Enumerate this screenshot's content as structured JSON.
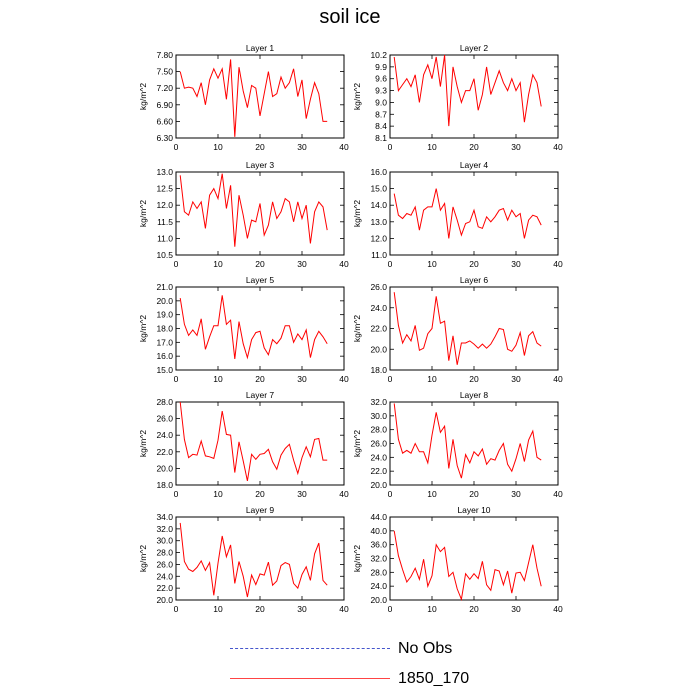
{
  "figure": {
    "title": "soil ice",
    "ylabel": "kg/m^2"
  },
  "legend": {
    "items": [
      {
        "label": "No Obs",
        "style": "dashed",
        "color": "#0000cc"
      },
      {
        "label": "1850_170",
        "style": "solid",
        "color": "#ff0000"
      }
    ]
  },
  "chart_data": [
    {
      "type": "line",
      "title": "Layer 1",
      "ylabel": "kg/m^2",
      "xlim": [
        0,
        40
      ],
      "xticks": [
        0,
        10,
        20,
        30,
        40
      ],
      "ylim": [
        6.3,
        7.8
      ],
      "yticks": [
        6.3,
        6.6,
        6.9,
        7.2,
        7.5,
        7.8
      ],
      "ytick_labels": [
        "6.30",
        "6.60",
        "6.90",
        "7.20",
        "7.50",
        "7.80"
      ],
      "series": [
        {
          "color": "#ff0000",
          "x": [
            1,
            2,
            3,
            4,
            5,
            6,
            7,
            8,
            9,
            10,
            11,
            12,
            13,
            14,
            15,
            16,
            17,
            18,
            19,
            20,
            21,
            22,
            23,
            24,
            25,
            26,
            27,
            28,
            29,
            30,
            31,
            32,
            33,
            34,
            35,
            36
          ],
          "values": [
            7.5,
            7.2,
            7.22,
            7.2,
            7.05,
            7.3,
            6.9,
            7.35,
            7.55,
            7.38,
            7.55,
            7.0,
            7.72,
            6.32,
            7.58,
            7.15,
            6.85,
            7.25,
            7.2,
            6.7,
            7.1,
            7.5,
            7.05,
            7.1,
            7.4,
            7.2,
            7.3,
            7.55,
            7.05,
            7.35,
            6.65,
            7.0,
            7.3,
            7.1,
            6.6,
            6.6
          ]
        }
      ]
    },
    {
      "type": "line",
      "title": "Layer 2",
      "ylabel": "kg/m^2",
      "xlim": [
        0,
        40
      ],
      "xticks": [
        0,
        10,
        20,
        30,
        40
      ],
      "ylim": [
        8.1,
        10.2
      ],
      "yticks": [
        8.1,
        8.4,
        8.7,
        9.0,
        9.3,
        9.6,
        9.9,
        10.2
      ],
      "ytick_labels": [
        "8.1",
        "8.4",
        "8.7",
        "9.0",
        "9.3",
        "9.6",
        "9.9",
        "10.2"
      ],
      "series": [
        {
          "color": "#ff0000",
          "x": [
            1,
            2,
            3,
            4,
            5,
            6,
            7,
            8,
            9,
            10,
            11,
            12,
            13,
            14,
            15,
            16,
            17,
            18,
            19,
            20,
            21,
            22,
            23,
            24,
            25,
            26,
            27,
            28,
            29,
            30,
            31,
            32,
            33,
            34,
            35,
            36
          ],
          "values": [
            10.15,
            9.3,
            9.45,
            9.6,
            9.4,
            9.7,
            9.0,
            9.7,
            9.95,
            9.6,
            10.15,
            9.4,
            10.2,
            8.4,
            9.9,
            9.4,
            9.0,
            9.3,
            9.3,
            9.6,
            8.8,
            9.2,
            9.9,
            9.2,
            9.5,
            9.8,
            9.5,
            9.3,
            9.6,
            9.3,
            9.5,
            8.5,
            9.2,
            9.7,
            9.5,
            8.9
          ]
        }
      ]
    },
    {
      "type": "line",
      "title": "Layer 3",
      "ylabel": "kg/m^2",
      "xlim": [
        0,
        40
      ],
      "xticks": [
        0,
        10,
        20,
        30,
        40
      ],
      "ylim": [
        10.5,
        13.0
      ],
      "yticks": [
        10.5,
        11.0,
        11.5,
        12.0,
        12.5,
        13.0
      ],
      "ytick_labels": [
        "10.5",
        "11.0",
        "11.5",
        "12.0",
        "12.5",
        "13.0"
      ],
      "series": [
        {
          "color": "#ff0000",
          "x": [
            1,
            2,
            3,
            4,
            5,
            6,
            7,
            8,
            9,
            10,
            11,
            12,
            13,
            14,
            15,
            16,
            17,
            18,
            19,
            20,
            21,
            22,
            23,
            24,
            25,
            26,
            27,
            28,
            29,
            30,
            31,
            32,
            33,
            34,
            35,
            36
          ],
          "values": [
            12.9,
            11.8,
            11.7,
            12.1,
            11.9,
            12.1,
            11.3,
            12.3,
            12.5,
            12.2,
            12.95,
            11.9,
            12.6,
            10.75,
            12.3,
            11.7,
            11.0,
            11.55,
            11.5,
            12.05,
            11.1,
            11.4,
            12.1,
            11.6,
            11.8,
            12.2,
            12.1,
            11.5,
            12.1,
            11.6,
            12.0,
            10.85,
            11.8,
            12.1,
            11.95,
            11.25
          ]
        }
      ]
    },
    {
      "type": "line",
      "title": "Layer 4",
      "ylabel": "kg/m^2",
      "xlim": [
        0,
        40
      ],
      "xticks": [
        0,
        10,
        20,
        30,
        40
      ],
      "ylim": [
        11.0,
        16.0
      ],
      "yticks": [
        11.0,
        12.0,
        13.0,
        14.0,
        15.0,
        16.0
      ],
      "ytick_labels": [
        "11.0",
        "12.0",
        "13.0",
        "14.0",
        "15.0",
        "16.0"
      ],
      "series": [
        {
          "color": "#ff0000",
          "x": [
            1,
            2,
            3,
            4,
            5,
            6,
            7,
            8,
            9,
            10,
            11,
            12,
            13,
            14,
            15,
            16,
            17,
            18,
            19,
            20,
            21,
            22,
            23,
            24,
            25,
            26,
            27,
            28,
            29,
            30,
            31,
            32,
            33,
            34,
            35,
            36
          ],
          "values": [
            14.7,
            13.4,
            13.2,
            13.5,
            13.4,
            13.9,
            12.5,
            13.7,
            13.9,
            13.9,
            15.0,
            13.7,
            14.1,
            12.0,
            13.9,
            13.1,
            12.2,
            12.9,
            13.0,
            13.7,
            12.7,
            12.6,
            13.3,
            13.0,
            13.3,
            13.7,
            13.8,
            13.1,
            13.7,
            13.3,
            13.5,
            12.0,
            13.1,
            13.4,
            13.3,
            12.8
          ]
        }
      ]
    },
    {
      "type": "line",
      "title": "Layer 5",
      "ylabel": "kg/m^2",
      "xlim": [
        0,
        40
      ],
      "xticks": [
        0,
        10,
        20,
        30,
        40
      ],
      "ylim": [
        15.0,
        21.0
      ],
      "yticks": [
        15.0,
        16.0,
        17.0,
        18.0,
        19.0,
        20.0,
        21.0
      ],
      "ytick_labels": [
        "15.0",
        "16.0",
        "17.0",
        "18.0",
        "19.0",
        "20.0",
        "21.0"
      ],
      "series": [
        {
          "color": "#ff0000",
          "x": [
            1,
            2,
            3,
            4,
            5,
            6,
            7,
            8,
            9,
            10,
            11,
            12,
            13,
            14,
            15,
            16,
            17,
            18,
            19,
            20,
            21,
            22,
            23,
            24,
            25,
            26,
            27,
            28,
            29,
            30,
            31,
            32,
            33,
            34,
            35,
            36
          ],
          "values": [
            20.2,
            18.3,
            17.5,
            17.9,
            17.5,
            18.7,
            16.5,
            17.4,
            18.2,
            18.2,
            20.4,
            18.3,
            18.6,
            15.8,
            18.5,
            16.9,
            15.9,
            17.2,
            17.7,
            17.8,
            16.6,
            16.1,
            17.2,
            16.9,
            17.3,
            18.2,
            18.2,
            17.0,
            17.6,
            17.2,
            17.9,
            15.9,
            17.2,
            17.8,
            17.4,
            16.9
          ]
        }
      ]
    },
    {
      "type": "line",
      "title": "Layer 6",
      "ylabel": "kg/m^2",
      "xlim": [
        0,
        40
      ],
      "xticks": [
        0,
        10,
        20,
        30,
        40
      ],
      "ylim": [
        18.0,
        26.0
      ],
      "yticks": [
        18.0,
        20.0,
        22.0,
        24.0,
        26.0
      ],
      "ytick_labels": [
        "18.0",
        "20.0",
        "22.0",
        "24.0",
        "26.0"
      ],
      "series": [
        {
          "color": "#ff0000",
          "x": [
            1,
            2,
            3,
            4,
            5,
            6,
            7,
            8,
            9,
            10,
            11,
            12,
            13,
            14,
            15,
            16,
            17,
            18,
            19,
            20,
            21,
            22,
            23,
            24,
            25,
            26,
            27,
            28,
            29,
            30,
            31,
            32,
            33,
            34,
            35,
            36
          ],
          "values": [
            25.5,
            22.3,
            20.6,
            21.4,
            20.8,
            22.3,
            19.9,
            20.1,
            21.5,
            22.0,
            25.1,
            22.5,
            22.7,
            18.9,
            21.3,
            18.5,
            20.6,
            20.6,
            20.8,
            20.5,
            20.1,
            20.5,
            20.1,
            20.5,
            21.2,
            22.0,
            21.9,
            20.0,
            19.8,
            20.4,
            21.6,
            19.4,
            21.3,
            21.7,
            20.6,
            20.3
          ]
        }
      ]
    },
    {
      "type": "line",
      "title": "Layer 7",
      "ylabel": "kg/m^2",
      "xlim": [
        0,
        40
      ],
      "xticks": [
        0,
        10,
        20,
        30,
        40
      ],
      "ylim": [
        18.0,
        28.0
      ],
      "yticks": [
        18.0,
        20.0,
        22.0,
        24.0,
        26.0,
        28.0
      ],
      "ytick_labels": [
        "18.0",
        "20.0",
        "22.0",
        "24.0",
        "26.0",
        "28.0"
      ],
      "series": [
        {
          "color": "#ff0000",
          "x": [
            1,
            2,
            3,
            4,
            5,
            6,
            7,
            8,
            9,
            10,
            11,
            12,
            13,
            14,
            15,
            16,
            17,
            18,
            19,
            20,
            21,
            22,
            23,
            24,
            25,
            26,
            27,
            28,
            29,
            30,
            31,
            32,
            33,
            34,
            35,
            36
          ],
          "values": [
            28.0,
            23.5,
            21.3,
            21.7,
            21.6,
            23.3,
            21.5,
            21.4,
            21.2,
            23.4,
            26.9,
            24.1,
            24.0,
            19.5,
            23.2,
            20.9,
            18.5,
            21.7,
            21.1,
            21.7,
            21.8,
            22.3,
            20.8,
            19.9,
            21.6,
            22.4,
            22.9,
            21.0,
            19.4,
            21.3,
            22.6,
            21.4,
            23.5,
            23.6,
            21.0,
            21.0
          ]
        }
      ]
    },
    {
      "type": "line",
      "title": "Layer 8",
      "ylabel": "kg/m^2",
      "xlim": [
        0,
        40
      ],
      "xticks": [
        0,
        10,
        20,
        30,
        40
      ],
      "ylim": [
        20.0,
        32.0
      ],
      "yticks": [
        20.0,
        22.0,
        24.0,
        26.0,
        28.0,
        30.0,
        32.0
      ],
      "ytick_labels": [
        "20.0",
        "22.0",
        "24.0",
        "26.0",
        "28.0",
        "30.0",
        "32.0"
      ],
      "series": [
        {
          "color": "#ff0000",
          "x": [
            1,
            2,
            3,
            4,
            5,
            6,
            7,
            8,
            9,
            10,
            11,
            12,
            13,
            14,
            15,
            16,
            17,
            18,
            19,
            20,
            21,
            22,
            23,
            24,
            25,
            26,
            27,
            28,
            29,
            30,
            31,
            32,
            33,
            34,
            35,
            36
          ],
          "values": [
            31.8,
            26.6,
            24.6,
            25.0,
            24.6,
            26.0,
            24.8,
            24.8,
            23.2,
            27.2,
            30.5,
            27.6,
            28.5,
            22.4,
            26.6,
            22.8,
            21.0,
            24.4,
            23.2,
            24.8,
            24.2,
            25.2,
            23.0,
            23.8,
            23.6,
            25.0,
            26.0,
            23.0,
            22.0,
            23.8,
            26.0,
            23.4,
            26.5,
            27.8,
            24.0,
            23.6
          ]
        }
      ]
    },
    {
      "type": "line",
      "title": "Layer 9",
      "ylabel": "kg/m^2",
      "xlim": [
        0,
        40
      ],
      "xticks": [
        0,
        10,
        20,
        30,
        40
      ],
      "ylim": [
        20.0,
        34.0
      ],
      "yticks": [
        20.0,
        22.0,
        24.0,
        26.0,
        28.0,
        30.0,
        32.0,
        34.0
      ],
      "ytick_labels": [
        "20.0",
        "22.0",
        "24.0",
        "26.0",
        "28.0",
        "30.0",
        "32.0",
        "34.0"
      ],
      "series": [
        {
          "color": "#ff0000",
          "x": [
            1,
            2,
            3,
            4,
            5,
            6,
            7,
            8,
            9,
            10,
            11,
            12,
            13,
            14,
            15,
            16,
            17,
            18,
            19,
            20,
            21,
            22,
            23,
            24,
            25,
            26,
            27,
            28,
            29,
            30,
            31,
            32,
            33,
            34,
            35,
            36
          ],
          "values": [
            33.0,
            26.5,
            25.2,
            24.8,
            25.5,
            26.6,
            25.0,
            26.3,
            20.8,
            26.2,
            30.8,
            27.3,
            29.3,
            22.8,
            26.5,
            24.0,
            20.5,
            24.2,
            22.6,
            24.4,
            24.2,
            26.4,
            22.5,
            23.2,
            25.8,
            26.3,
            26.0,
            22.8,
            22.0,
            24.3,
            25.6,
            23.3,
            27.8,
            29.6,
            23.3,
            22.5
          ]
        }
      ]
    },
    {
      "type": "line",
      "title": "Layer 10",
      "ylabel": "kg/m^2",
      "xlim": [
        0,
        40
      ],
      "xticks": [
        0,
        10,
        20,
        30,
        40
      ],
      "ylim": [
        20.0,
        44.0
      ],
      "yticks": [
        20.0,
        24.0,
        28.0,
        32.0,
        36.0,
        40.0,
        44.0
      ],
      "ytick_labels": [
        "20.0",
        "24.0",
        "28.0",
        "32.0",
        "36.0",
        "40.0",
        "44.0"
      ],
      "series": [
        {
          "color": "#ff0000",
          "x": [
            1,
            2,
            3,
            4,
            5,
            6,
            7,
            8,
            9,
            10,
            11,
            12,
            13,
            14,
            15,
            16,
            17,
            18,
            19,
            20,
            21,
            22,
            23,
            24,
            25,
            26,
            27,
            28,
            29,
            30,
            31,
            32,
            33,
            34,
            35,
            36
          ],
          "values": [
            40.0,
            32.8,
            28.8,
            25.2,
            26.8,
            29.2,
            26.0,
            31.8,
            24.0,
            27.0,
            36.0,
            34.0,
            35.2,
            26.8,
            28.0,
            23.2,
            20.2,
            27.6,
            26.0,
            27.6,
            26.2,
            31.2,
            24.4,
            22.8,
            28.8,
            28.4,
            24.4,
            28.4,
            22.0,
            27.8,
            28.0,
            25.6,
            30.8,
            36.0,
            29.2,
            24.0
          ]
        }
      ]
    }
  ]
}
